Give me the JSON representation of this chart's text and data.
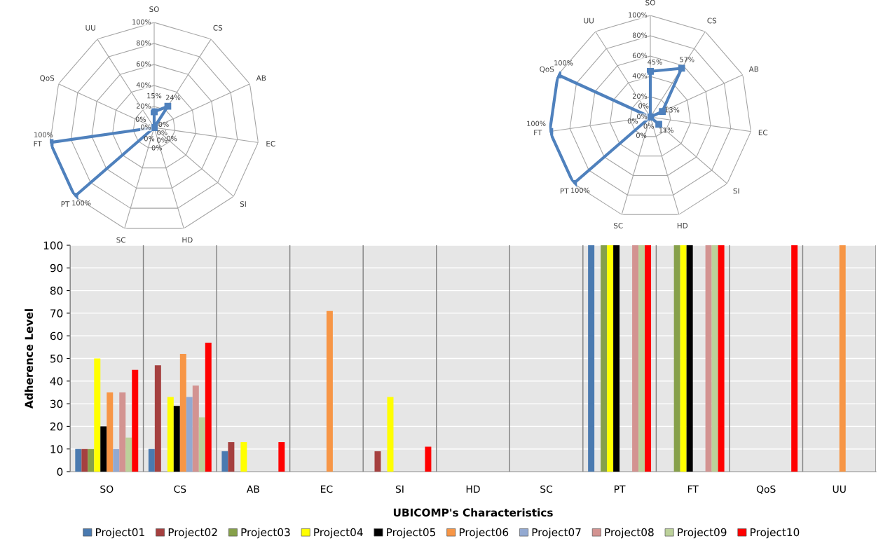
{
  "chart_data": [
    {
      "type": "radar",
      "categories": [
        "SO",
        "CS",
        "AB",
        "EC",
        "SI",
        "HD",
        "SC",
        "PT",
        "FT",
        "QoS",
        "UU"
      ],
      "series": [
        {
          "color": "#4f81bd",
          "values": [
            15,
            24,
            0,
            0,
            0,
            0,
            0,
            100,
            100,
            0,
            0
          ],
          "value_labels": [
            "15%",
            "24%",
            "0%",
            "0%",
            "0%",
            "0%",
            "0%",
            "100%",
            "100%",
            "0%",
            "0%"
          ]
        }
      ],
      "ylim": [
        0,
        100
      ],
      "yticks": [
        {
          "value": 0,
          "label": "0%"
        },
        {
          "value": 20,
          "label": "20%"
        },
        {
          "value": 40,
          "label": "40%"
        },
        {
          "value": 60,
          "label": "60%"
        },
        {
          "value": 80,
          "label": "80%"
        },
        {
          "value": 100,
          "label": "100%"
        }
      ],
      "grid": true,
      "marker": "square"
    },
    {
      "type": "radar",
      "categories": [
        "SO",
        "CS",
        "AB",
        "EC",
        "SI",
        "HD",
        "SC",
        "PT",
        "FT",
        "QoS",
        "UU"
      ],
      "series": [
        {
          "color": "#4f81bd",
          "values": [
            45,
            57,
            13,
            0,
            11,
            0,
            0,
            100,
            100,
            100,
            0
          ],
          "value_labels": [
            "45%",
            "57%",
            "13%",
            "0%",
            "11%",
            "0%",
            "0%",
            "100%",
            "100%",
            "100%",
            "0%"
          ]
        }
      ],
      "ylim": [
        0,
        100
      ],
      "yticks": [
        {
          "value": 0,
          "label": "0%"
        },
        {
          "value": 20,
          "label": "20%"
        },
        {
          "value": 40,
          "label": "40%"
        },
        {
          "value": 60,
          "label": "60%"
        },
        {
          "value": 80,
          "label": "80%"
        },
        {
          "value": 100,
          "label": "100%"
        }
      ],
      "grid": true,
      "marker": "square"
    },
    {
      "type": "bar",
      "xlabel": "UBICOMP's Characteristics",
      "ylabel": "Adherence Level",
      "categories": [
        "SO",
        "CS",
        "AB",
        "EC",
        "SI",
        "HD",
        "SC",
        "PT",
        "FT",
        "QoS",
        "UU"
      ],
      "series": [
        {
          "name": "Project01",
          "color": "#4a7ab0",
          "values": [
            10,
            10,
            9,
            0,
            0,
            0,
            0,
            100,
            0,
            0,
            0
          ]
        },
        {
          "name": "Project02",
          "color": "#a5403f",
          "values": [
            10,
            47,
            13,
            0,
            9,
            0,
            0,
            0,
            0,
            0,
            0
          ]
        },
        {
          "name": "Project03",
          "color": "#86a04a",
          "values": [
            10,
            0,
            0,
            0,
            0,
            0,
            0,
            100,
            100,
            0,
            0
          ]
        },
        {
          "name": "Project04",
          "color": "#ffff00",
          "values": [
            50,
            33,
            13,
            0,
            33,
            0,
            0,
            100,
            100,
            0,
            0
          ]
        },
        {
          "name": "Project05",
          "color": "#000000",
          "values": [
            20,
            29,
            0,
            0,
            0,
            0,
            0,
            100,
            100,
            0,
            0
          ]
        },
        {
          "name": "Project06",
          "color": "#f79646",
          "values": [
            35,
            52,
            0,
            71,
            0,
            0,
            0,
            0,
            0,
            0,
            100
          ]
        },
        {
          "name": "Project07",
          "color": "#93a9d1",
          "values": [
            10,
            33,
            0,
            0,
            0,
            0,
            0,
            0,
            0,
            0,
            0
          ]
        },
        {
          "name": "Project08",
          "color": "#d39391",
          "values": [
            35,
            38,
            0,
            0,
            0,
            0,
            0,
            100,
            100,
            0,
            0
          ]
        },
        {
          "name": "Project09",
          "color": "#bcd19a",
          "values": [
            15,
            24,
            0,
            0,
            0,
            0,
            0,
            100,
            100,
            0,
            0
          ]
        },
        {
          "name": "Project10",
          "color": "#ff0000",
          "values": [
            45,
            57,
            13,
            0,
            11,
            0,
            0,
            100,
            100,
            100,
            0
          ]
        }
      ],
      "ylim": [
        0,
        100
      ],
      "yticks": [
        0,
        10,
        20,
        30,
        40,
        50,
        60,
        70,
        80,
        90,
        100
      ],
      "grid": true,
      "legend": "bottom"
    }
  ]
}
